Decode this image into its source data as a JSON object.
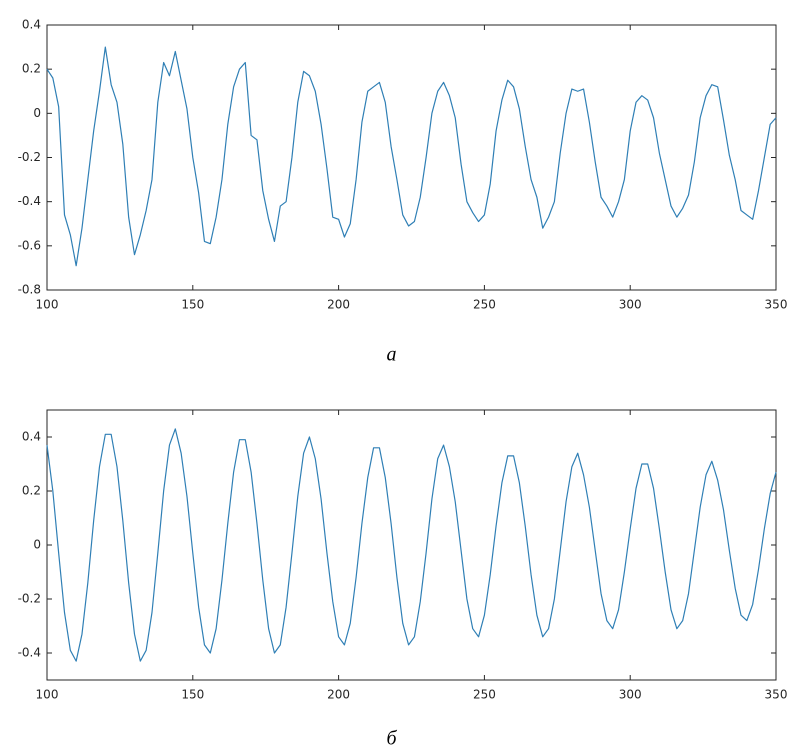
{
  "chart_data": [
    {
      "type": "line",
      "caption": "а",
      "x": [
        100,
        102,
        104,
        106,
        108,
        110,
        112,
        114,
        116,
        118,
        120,
        122,
        124,
        126,
        128,
        130,
        132,
        134,
        136,
        138,
        140,
        142,
        144,
        146,
        148,
        150,
        152,
        154,
        156,
        158,
        160,
        162,
        164,
        166,
        168,
        170,
        172,
        174,
        176,
        178,
        180,
        182,
        184,
        186,
        188,
        190,
        192,
        194,
        196,
        198,
        200,
        202,
        204,
        206,
        208,
        210,
        212,
        214,
        216,
        218,
        220,
        222,
        224,
        226,
        228,
        230,
        232,
        234,
        236,
        238,
        240,
        242,
        244,
        246,
        248,
        250,
        252,
        254,
        256,
        258,
        260,
        262,
        264,
        266,
        268,
        270,
        272,
        274,
        276,
        278,
        280,
        282,
        284,
        286,
        288,
        290,
        292,
        294,
        296,
        298,
        300,
        302,
        304,
        306,
        308,
        310,
        312,
        314,
        316,
        318,
        320,
        322,
        324,
        326,
        328,
        330,
        332,
        334,
        336,
        338,
        340,
        342,
        344,
        346,
        348,
        350
      ],
      "series": [
        {
          "color": "#2f7fb5",
          "values": [
            0.2,
            0.16,
            0.03,
            -0.46,
            -0.55,
            -0.69,
            -0.52,
            -0.3,
            -0.08,
            0.1,
            0.3,
            0.13,
            0.05,
            -0.14,
            -0.47,
            -0.64,
            -0.55,
            -0.44,
            -0.3,
            0.05,
            0.23,
            0.17,
            0.28,
            0.15,
            0.02,
            -0.2,
            -0.36,
            -0.58,
            -0.59,
            -0.47,
            -0.3,
            -0.05,
            0.12,
            0.2,
            0.23,
            -0.1,
            -0.12,
            -0.35,
            -0.48,
            -0.58,
            -0.42,
            -0.4,
            -0.2,
            0.05,
            0.19,
            0.17,
            0.1,
            -0.05,
            -0.25,
            -0.47,
            -0.48,
            -0.56,
            -0.5,
            -0.3,
            -0.04,
            0.1,
            0.12,
            0.14,
            0.05,
            -0.15,
            -0.3,
            -0.46,
            -0.51,
            -0.49,
            -0.38,
            -0.2,
            0.0,
            0.1,
            0.14,
            0.08,
            -0.02,
            -0.23,
            -0.4,
            -0.45,
            -0.49,
            -0.46,
            -0.32,
            -0.08,
            0.06,
            0.15,
            0.12,
            0.02,
            -0.15,
            -0.3,
            -0.38,
            -0.52,
            -0.47,
            -0.4,
            -0.18,
            0.0,
            0.11,
            0.1,
            0.11,
            -0.04,
            -0.22,
            -0.38,
            -0.42,
            -0.47,
            -0.4,
            -0.3,
            -0.08,
            0.05,
            0.08,
            0.06,
            -0.02,
            -0.18,
            -0.3,
            -0.42,
            -0.47,
            -0.43,
            -0.37,
            -0.22,
            -0.02,
            0.08,
            0.13,
            0.12,
            -0.03,
            -0.19,
            -0.3,
            -0.44,
            -0.46,
            -0.48,
            -0.35,
            -0.2,
            -0.05,
            -0.02
          ]
        }
      ],
      "xlim": [
        100,
        350
      ],
      "xticks": [
        100,
        150,
        200,
        250,
        300,
        350
      ],
      "ylim": [
        -0.8,
        0.4
      ],
      "yticks": [
        -0.8,
        -0.6,
        -0.4,
        -0.2,
        0,
        0.2,
        0.4
      ],
      "grid": false
    },
    {
      "type": "line",
      "caption": "б",
      "x": [
        100,
        102,
        104,
        106,
        108,
        110,
        112,
        114,
        116,
        118,
        120,
        122,
        124,
        126,
        128,
        130,
        132,
        134,
        136,
        138,
        140,
        142,
        144,
        146,
        148,
        150,
        152,
        154,
        156,
        158,
        160,
        162,
        164,
        166,
        168,
        170,
        172,
        174,
        176,
        178,
        180,
        182,
        184,
        186,
        188,
        190,
        192,
        194,
        196,
        198,
        200,
        202,
        204,
        206,
        208,
        210,
        212,
        214,
        216,
        218,
        220,
        222,
        224,
        226,
        228,
        230,
        232,
        234,
        236,
        238,
        240,
        242,
        244,
        246,
        248,
        250,
        252,
        254,
        256,
        258,
        260,
        262,
        264,
        266,
        268,
        270,
        272,
        274,
        276,
        278,
        280,
        282,
        284,
        286,
        288,
        290,
        292,
        294,
        296,
        298,
        300,
        302,
        304,
        306,
        308,
        310,
        312,
        314,
        316,
        318,
        320,
        322,
        324,
        326,
        328,
        330,
        332,
        334,
        336,
        338,
        340,
        342,
        344,
        346,
        348,
        350
      ],
      "series": [
        {
          "color": "#2f7fb5",
          "values": [
            0.37,
            0.2,
            -0.03,
            -0.25,
            -0.39,
            -0.43,
            -0.33,
            -0.14,
            0.09,
            0.29,
            0.41,
            0.41,
            0.29,
            0.09,
            -0.14,
            -0.33,
            -0.43,
            -0.39,
            -0.25,
            -0.03,
            0.2,
            0.37,
            0.43,
            0.34,
            0.18,
            -0.03,
            -0.23,
            -0.37,
            -0.4,
            -0.31,
            -0.13,
            0.08,
            0.27,
            0.39,
            0.39,
            0.27,
            0.08,
            -0.13,
            -0.31,
            -0.4,
            -0.37,
            -0.23,
            -0.03,
            0.18,
            0.34,
            0.4,
            0.32,
            0.17,
            -0.03,
            -0.21,
            -0.34,
            -0.37,
            -0.29,
            -0.12,
            0.08,
            0.25,
            0.36,
            0.36,
            0.25,
            0.08,
            -0.12,
            -0.29,
            -0.37,
            -0.34,
            -0.21,
            -0.03,
            0.17,
            0.32,
            0.37,
            0.29,
            0.16,
            -0.02,
            -0.2,
            -0.31,
            -0.34,
            -0.26,
            -0.11,
            0.07,
            0.23,
            0.33,
            0.33,
            0.23,
            0.07,
            -0.11,
            -0.26,
            -0.34,
            -0.31,
            -0.2,
            -0.02,
            0.16,
            0.29,
            0.34,
            0.26,
            0.14,
            -0.02,
            -0.18,
            -0.28,
            -0.31,
            -0.24,
            -0.1,
            0.06,
            0.21,
            0.3,
            0.3,
            0.21,
            0.06,
            -0.1,
            -0.24,
            -0.31,
            -0.28,
            -0.18,
            -0.02,
            0.14,
            0.26,
            0.31,
            0.24,
            0.13,
            -0.02,
            -0.16,
            -0.26,
            -0.28,
            -0.22,
            -0.09,
            0.06,
            0.19,
            0.27
          ]
        }
      ],
      "xlim": [
        100,
        350
      ],
      "xticks": [
        100,
        150,
        200,
        250,
        300,
        350
      ],
      "ylim": [
        -0.5,
        0.5
      ],
      "yticks": [
        -0.4,
        -0.2,
        0,
        0.2,
        0.4
      ],
      "grid": false
    }
  ]
}
